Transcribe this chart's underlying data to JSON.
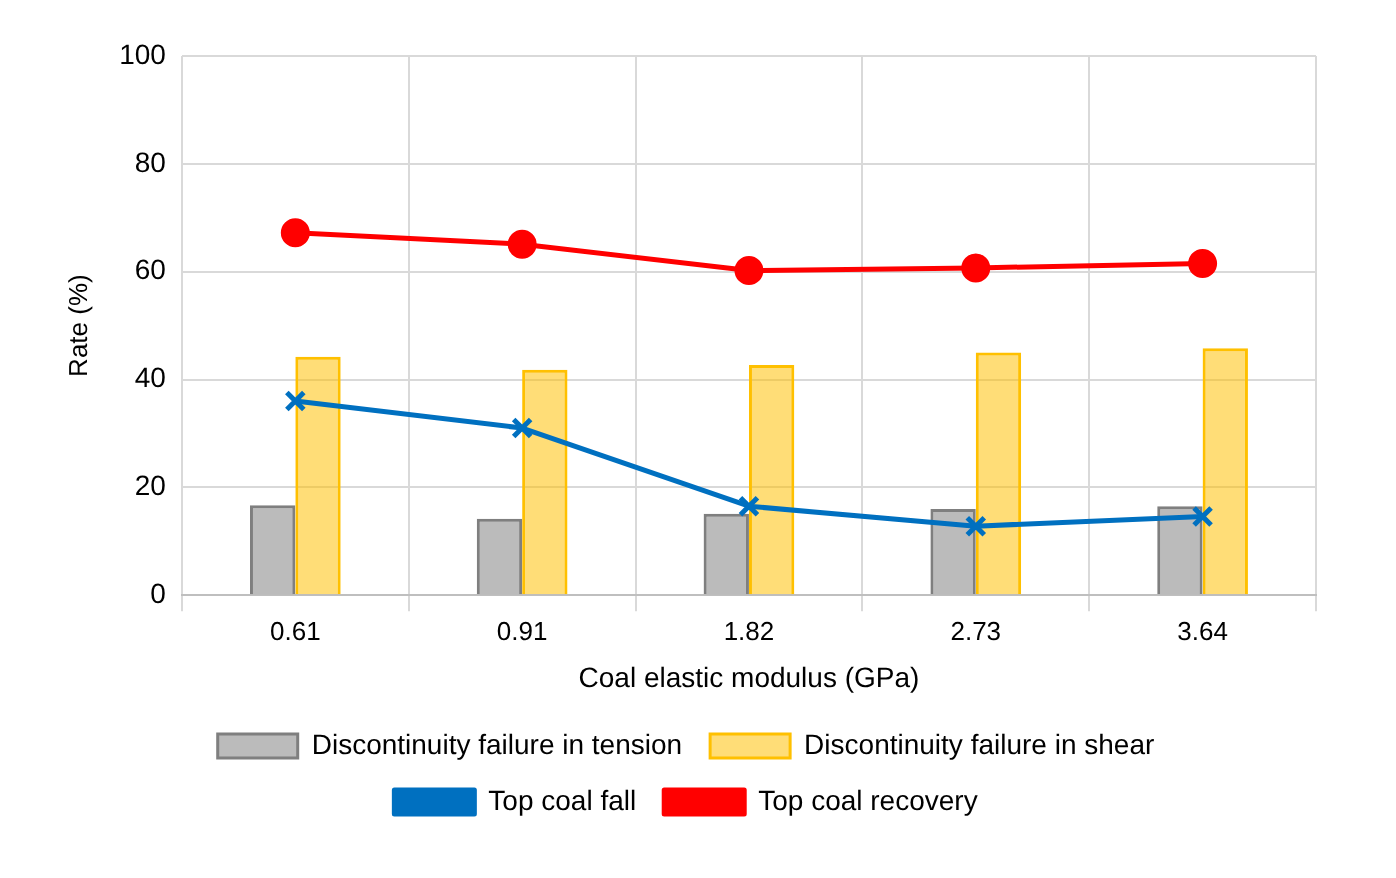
{
  "chart_data": {
    "type": "bar",
    "xlabel": "Coal elastic modulus (GPa)",
    "ylabel": "Rate (%)",
    "categories": [
      "0.61",
      "0.91",
      "1.82",
      "2.73",
      "3.64"
    ],
    "series": [
      {
        "name": "Discontinuity failure in tension",
        "color": "#7f7f7f",
        "values": [
          16.7,
          14.2,
          15.1,
          16.0,
          16.5
        ]
      },
      {
        "name": "Discontinuity failure in shear",
        "color": "#ffc000",
        "values": [
          44.2,
          41.8,
          42.7,
          45.0,
          45.8
        ]
      },
      {
        "name": "Top coal fall",
        "type": "line",
        "color": "#0070c0",
        "marker": "cross",
        "values": [
          36.0,
          31.0,
          16.5,
          12.8,
          14.6
        ]
      },
      {
        "name": "Top coal recovery",
        "type": "line",
        "color": "#ff0000",
        "marker": "circle",
        "values": [
          67.2,
          65.1,
          60.2,
          60.7,
          61.5
        ]
      }
    ],
    "ylim": [
      0,
      100
    ],
    "yticks": [
      0,
      20,
      40,
      60,
      80,
      100
    ],
    "grid": true,
    "legend": "bottom"
  }
}
